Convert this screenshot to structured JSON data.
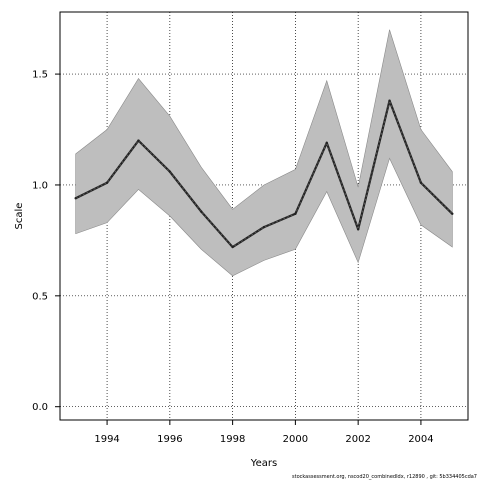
{
  "chart_data": {
    "type": "line",
    "title": "",
    "xlabel": "Years",
    "ylabel": "Scale",
    "x": [
      1993,
      1994,
      1995,
      1996,
      1997,
      1998,
      1999,
      2000,
      2001,
      2002,
      2003,
      2004,
      2005
    ],
    "series": [
      {
        "values": [
          0.94,
          1.01,
          1.2,
          1.06,
          0.88,
          0.72,
          0.81,
          0.87,
          1.19,
          0.8,
          1.38,
          1.01,
          0.87
        ],
        "lower": [
          0.78,
          0.83,
          0.98,
          0.86,
          0.71,
          0.59,
          0.66,
          0.71,
          0.97,
          0.65,
          1.12,
          0.82,
          0.72
        ],
        "upper": [
          1.14,
          1.25,
          1.48,
          1.31,
          1.08,
          0.89,
          1.0,
          1.07,
          1.47,
          0.99,
          1.7,
          1.25,
          1.06
        ]
      }
    ],
    "xlim": [
      1992.5,
      2005.5
    ],
    "ylim": [
      -0.06,
      1.78
    ],
    "x_ticks": [
      "1994",
      "1996",
      "1998",
      "2000",
      "2002",
      "2004"
    ],
    "y_ticks": [
      "0.0",
      "0.5",
      "1.0",
      "1.5"
    ],
    "grid": true,
    "band_color": "#bebebe",
    "line_color": "#222222"
  },
  "footnote": "stockassessment.org, nscod20_combinedIdx, r12890 , git: 5b334405cda7"
}
